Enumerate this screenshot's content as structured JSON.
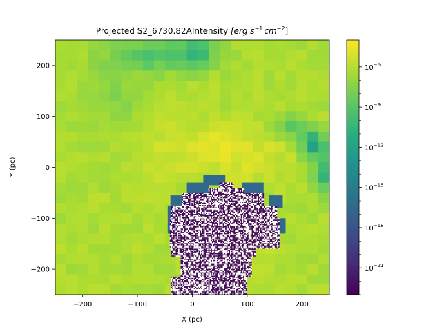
{
  "chart_data": {
    "type": "heatmap",
    "title": "Projected S2_6730.82AIntensity",
    "title_units_base": "[erg s",
    "title_units_exp1": "−1",
    "title_units_mid": "cm",
    "title_units_exp2": "−2",
    "title_units_end": "]",
    "xlabel": "X (pc)",
    "ylabel": "Y (pc)",
    "xlim": [
      -250,
      250
    ],
    "ylim": [
      -250,
      250
    ],
    "x_ticks": [
      -200,
      -100,
      0,
      100,
      200
    ],
    "y_ticks": [
      -200,
      -100,
      0,
      100,
      200
    ],
    "x_tick_labels": [
      "−200",
      "−100",
      "0",
      "100",
      "200"
    ],
    "y_tick_labels": [
      "−200",
      "−100",
      "0",
      "100",
      "200"
    ],
    "colormap": "viridis",
    "colorbar_scale": "log",
    "colorbar_range": [
      1e-23,
      0.0001
    ],
    "colorbar_ticks": [
      -6,
      -9,
      -12,
      -15,
      -18,
      -21
    ],
    "colorbar_tick_base": "10",
    "colorbar_tick_exps": [
      "−6",
      "−9",
      "−12",
      "−15",
      "−18",
      "−21"
    ],
    "grid": false,
    "regions": [
      {
        "name": "background",
        "value_log10": -6.5
      },
      {
        "name": "central bright band",
        "value_log10": -5.0
      },
      {
        "name": "upper-left dim region",
        "value_log10": -9.5
      },
      {
        "name": "right filament",
        "value_log10": -11.5
      },
      {
        "name": "noisy cavity",
        "value_log10": -22.0
      }
    ]
  }
}
